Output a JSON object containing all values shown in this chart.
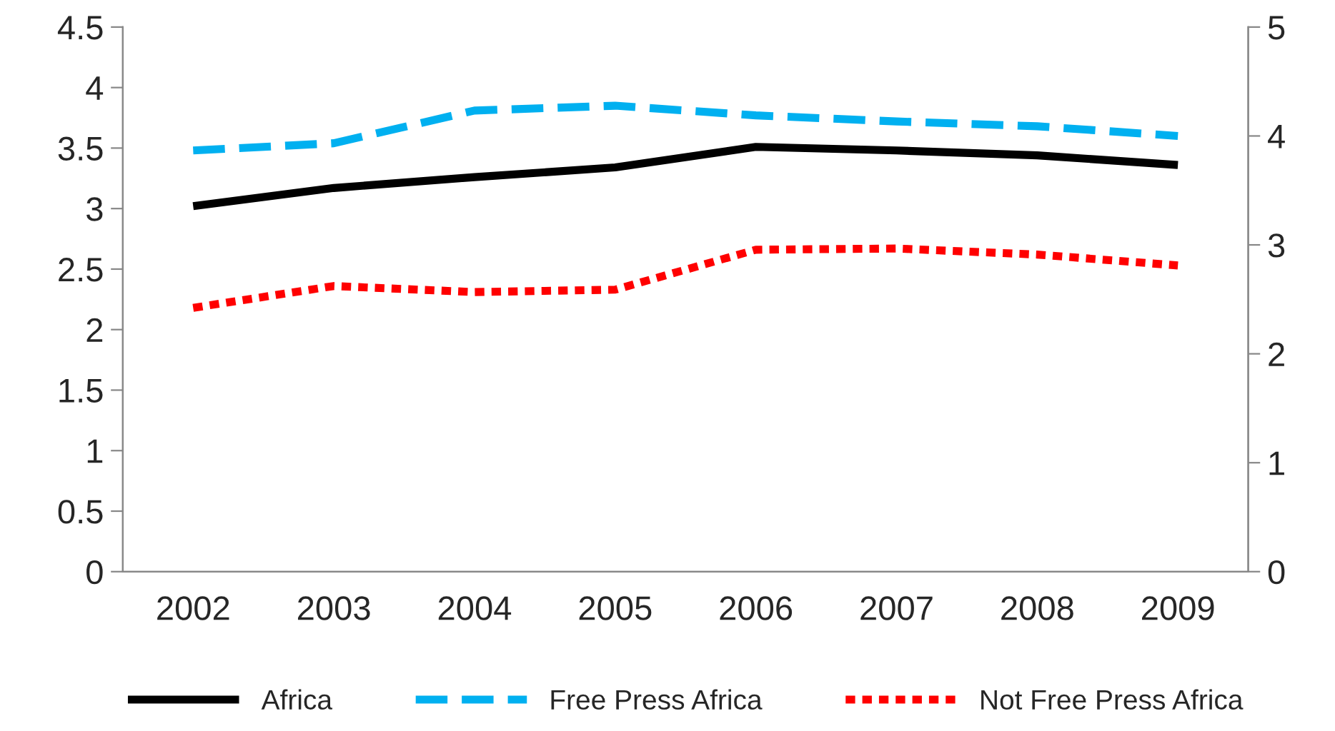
{
  "chart_data": {
    "type": "line",
    "categories": [
      "2002",
      "2003",
      "2004",
      "2005",
      "2006",
      "2007",
      "2008",
      "2009"
    ],
    "series": [
      {
        "name": "Africa",
        "color": "#000000",
        "line_style": "solid",
        "values": [
          3.02,
          3.17,
          3.26,
          3.34,
          3.51,
          3.48,
          3.44,
          3.36
        ]
      },
      {
        "name": "Free Press Africa",
        "color": "#00b0f0",
        "line_style": "dashed",
        "values": [
          3.48,
          3.54,
          3.81,
          3.85,
          3.77,
          3.72,
          3.68,
          3.6
        ]
      },
      {
        "name": "Not Free Press Africa",
        "color": "#ff0000",
        "line_style": "dotted",
        "values": [
          2.18,
          2.36,
          2.31,
          2.33,
          2.66,
          2.67,
          2.62,
          2.53
        ]
      }
    ],
    "ylim": [
      0,
      4.5
    ],
    "yticks": [
      0,
      0.5,
      1,
      1.5,
      2,
      2.5,
      3,
      3.5,
      4,
      4.5
    ],
    "y2lim": [
      0,
      5
    ],
    "y2ticks": [
      0,
      1,
      2,
      3,
      4,
      5
    ],
    "grid": false,
    "legend": "bottom",
    "marker": "none"
  }
}
